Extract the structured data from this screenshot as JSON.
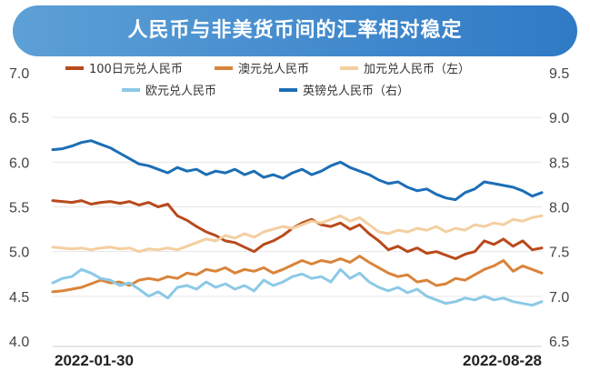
{
  "title": "人民币与非美货币间的汇率相对稳定",
  "chart_data": {
    "type": "line",
    "title": "人民币与非美货币间的汇率相对稳定",
    "xlabel": "",
    "ylabel": "",
    "x_tick_labels": [
      "2022-01-30",
      "2022-08-28"
    ],
    "y_left": {
      "ylim": [
        4.0,
        7.0
      ],
      "ticks": [
        "7.0",
        "6.5",
        "6.0",
        "5.5",
        "5.0",
        "4.5",
        "4.0"
      ]
    },
    "y_right": {
      "ylim": [
        6.5,
        9.5
      ],
      "ticks": [
        "9.5",
        "9.0",
        "8.5",
        "8.0",
        "7.5",
        "7.0",
        "6.5"
      ]
    },
    "grid": true,
    "legend_position": "top",
    "series": [
      {
        "name": "100日元兑人民币",
        "axis": "left",
        "color": "#b84a1c",
        "values": [
          5.57,
          5.56,
          5.55,
          5.57,
          5.53,
          5.55,
          5.56,
          5.54,
          5.56,
          5.52,
          5.55,
          5.5,
          5.53,
          5.4,
          5.35,
          5.28,
          5.22,
          5.18,
          5.12,
          5.1,
          5.05,
          5.0,
          5.08,
          5.12,
          5.18,
          5.26,
          5.32,
          5.36,
          5.3,
          5.28,
          5.32,
          5.25,
          5.3,
          5.2,
          5.12,
          5.02,
          5.06,
          5.0,
          5.04,
          4.98,
          5.0,
          4.96,
          4.92,
          4.97,
          5.0,
          5.12,
          5.08,
          5.14,
          5.06,
          5.12,
          5.02,
          5.04
        ]
      },
      {
        "name": "澳元兑人民币",
        "axis": "left",
        "color": "#d9843a",
        "values": [
          4.55,
          4.56,
          4.58,
          4.6,
          4.64,
          4.68,
          4.65,
          4.66,
          4.62,
          4.68,
          4.7,
          4.68,
          4.72,
          4.7,
          4.76,
          4.74,
          4.8,
          4.78,
          4.82,
          4.76,
          4.8,
          4.78,
          4.82,
          4.76,
          4.8,
          4.85,
          4.9,
          4.86,
          4.9,
          4.88,
          4.92,
          4.88,
          4.95,
          4.88,
          4.82,
          4.76,
          4.72,
          4.74,
          4.66,
          4.68,
          4.62,
          4.64,
          4.7,
          4.68,
          4.74,
          4.8,
          4.84,
          4.9,
          4.78,
          4.84,
          4.8,
          4.76
        ]
      },
      {
        "name": "加元兑人民币（左）",
        "axis": "left",
        "color": "#f4cfa0",
        "values": [
          5.05,
          5.04,
          5.03,
          5.04,
          5.02,
          5.04,
          5.05,
          5.03,
          5.04,
          5.0,
          5.03,
          5.02,
          5.04,
          5.02,
          5.06,
          5.1,
          5.14,
          5.12,
          5.18,
          5.15,
          5.2,
          5.16,
          5.22,
          5.25,
          5.28,
          5.26,
          5.3,
          5.34,
          5.32,
          5.36,
          5.4,
          5.34,
          5.38,
          5.3,
          5.22,
          5.2,
          5.24,
          5.22,
          5.26,
          5.24,
          5.28,
          5.22,
          5.26,
          5.24,
          5.3,
          5.28,
          5.32,
          5.3,
          5.36,
          5.34,
          5.38,
          5.4
        ]
      },
      {
        "name": "欧元兑人民币",
        "axis": "left",
        "color": "#8cc9e6",
        "values": [
          4.65,
          4.7,
          4.72,
          4.8,
          4.76,
          4.7,
          4.68,
          4.62,
          4.65,
          4.58,
          4.5,
          4.55,
          4.48,
          4.6,
          4.62,
          4.58,
          4.66,
          4.6,
          4.64,
          4.58,
          4.62,
          4.56,
          4.68,
          4.62,
          4.66,
          4.72,
          4.75,
          4.7,
          4.72,
          4.66,
          4.8,
          4.7,
          4.76,
          4.66,
          4.6,
          4.56,
          4.6,
          4.54,
          4.58,
          4.5,
          4.46,
          4.42,
          4.44,
          4.48,
          4.46,
          4.5,
          4.46,
          4.48,
          4.44,
          4.42,
          4.4,
          4.44
        ]
      },
      {
        "name": "英镑兑人民币（右）",
        "axis": "right",
        "color": "#1c6eb5",
        "values": [
          8.64,
          8.65,
          8.68,
          8.72,
          8.74,
          8.7,
          8.66,
          8.6,
          8.54,
          8.48,
          8.46,
          8.42,
          8.38,
          8.44,
          8.4,
          8.42,
          8.36,
          8.4,
          8.38,
          8.42,
          8.36,
          8.4,
          8.33,
          8.36,
          8.32,
          8.38,
          8.42,
          8.36,
          8.4,
          8.46,
          8.5,
          8.44,
          8.4,
          8.36,
          8.3,
          8.26,
          8.28,
          8.22,
          8.18,
          8.2,
          8.14,
          8.1,
          8.08,
          8.16,
          8.2,
          8.28,
          8.26,
          8.24,
          8.22,
          8.18,
          8.12,
          8.16
        ]
      }
    ]
  }
}
